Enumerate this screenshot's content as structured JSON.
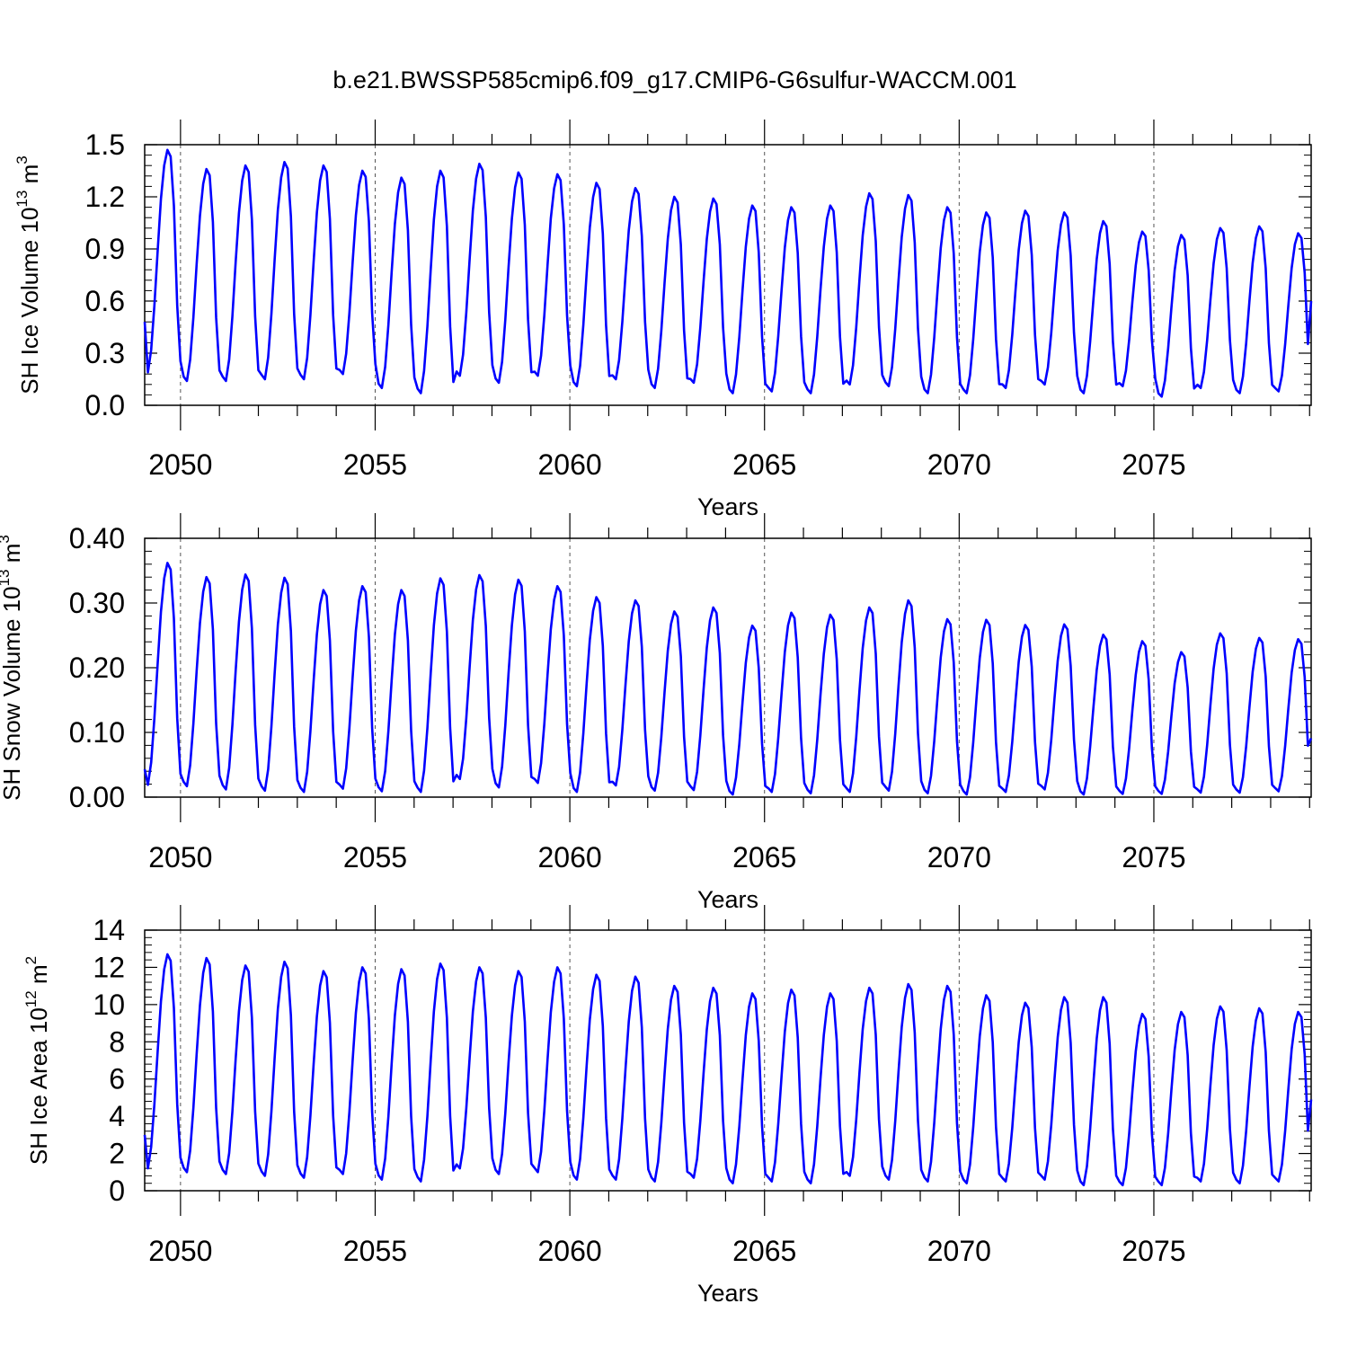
{
  "figure_title": "b.e21.BWSSP585cmip6.f09_g17.CMIP6-G6sulfur-WACCM.001",
  "line_color": "#0000ff",
  "chart_data": [
    {
      "type": "line",
      "ylabel_main": "SH Ice Volume 10",
      "ylabel_sup": "13",
      "ylabel_unit": " m",
      "ylabel_unit_sup": "3",
      "xlabel": "Years",
      "xlim": [
        2049.08,
        2079.04
      ],
      "ylim": [
        0,
        1.5
      ],
      "xticks": [
        "2050",
        "2055",
        "2060",
        "2065",
        "2070",
        "2075"
      ],
      "yticks": [
        "0.0",
        "0.3",
        "0.6",
        "0.9",
        "1.2",
        "1.5"
      ],
      "grid": "dashed vertical lines at labeled years",
      "series": [
        {
          "start_year": 2049.08,
          "peak_month_index": 8,
          "minima": [
            0.19,
            0.14,
            0.14,
            0.15,
            0.15,
            0.18,
            0.1,
            0.07,
            0.17,
            0.13,
            0.17,
            0.11,
            0.15,
            0.1,
            0.13,
            0.07,
            0.08,
            0.07,
            0.12,
            0.11,
            0.07,
            0.07,
            0.1,
            0.12,
            0.07,
            0.11,
            0.05,
            0.1,
            0.07,
            0.08
          ],
          "maxima": [
            1.47,
            1.36,
            1.38,
            1.4,
            1.38,
            1.35,
            1.31,
            1.35,
            1.39,
            1.34,
            1.33,
            1.28,
            1.25,
            1.2,
            1.19,
            1.15,
            1.14,
            1.15,
            1.22,
            1.21,
            1.14,
            1.11,
            1.12,
            1.11,
            1.06,
            1.0,
            0.98,
            1.02,
            1.03,
            0.99
          ],
          "start_value": 0.48,
          "end_value": 0.6
        }
      ]
    },
    {
      "type": "line",
      "ylabel_main": "SH Snow Volume 10",
      "ylabel_sup": "13",
      "ylabel_unit": " m",
      "ylabel_unit_sup": "3",
      "xlabel": "Years",
      "xlim": [
        2049.08,
        2079.04
      ],
      "ylim": [
        0,
        0.4
      ],
      "xticks": [
        "2050",
        "2055",
        "2060",
        "2065",
        "2070",
        "2075"
      ],
      "yticks": [
        "0.00",
        "0.10",
        "0.20",
        "0.30",
        "0.40"
      ],
      "grid": "dashed vertical lines at labeled years",
      "series": [
        {
          "start_year": 2049.08,
          "peak_month_index": 8,
          "minima": [
            0.019,
            0.017,
            0.012,
            0.01,
            0.008,
            0.013,
            0.009,
            0.008,
            0.028,
            0.015,
            0.022,
            0.008,
            0.018,
            0.01,
            0.011,
            0.004,
            0.008,
            0.006,
            0.008,
            0.01,
            0.006,
            0.004,
            0.008,
            0.012,
            0.004,
            0.005,
            0.005,
            0.007,
            0.007,
            0.009
          ],
          "maxima": [
            0.362,
            0.34,
            0.344,
            0.339,
            0.32,
            0.326,
            0.32,
            0.338,
            0.343,
            0.336,
            0.326,
            0.309,
            0.304,
            0.287,
            0.293,
            0.265,
            0.285,
            0.282,
            0.293,
            0.304,
            0.275,
            0.274,
            0.266,
            0.267,
            0.251,
            0.241,
            0.224,
            0.253,
            0.246,
            0.244
          ],
          "start_value": 0.043,
          "end_value": 0.091
        }
      ]
    },
    {
      "type": "line",
      "ylabel_main": "SH Ice Area 10",
      "ylabel_sup": "12",
      "ylabel_unit": " m",
      "ylabel_unit_sup": "2",
      "xlabel": "Years",
      "xlim": [
        2049.08,
        2079.04
      ],
      "ylim": [
        0,
        14
      ],
      "xticks": [
        "2050",
        "2055",
        "2060",
        "2065",
        "2070",
        "2075"
      ],
      "yticks": [
        "0",
        "2",
        "4",
        "6",
        "8",
        "10",
        "12",
        "14"
      ],
      "grid": "dashed vertical lines at labeled years",
      "series": [
        {
          "start_year": 2049.08,
          "peak_month_index": 8,
          "minima": [
            1.2,
            1.0,
            0.9,
            0.8,
            0.7,
            0.9,
            0.6,
            0.5,
            1.2,
            0.9,
            1.0,
            0.6,
            0.6,
            0.5,
            0.7,
            0.4,
            0.5,
            0.4,
            0.8,
            0.6,
            0.5,
            0.4,
            0.5,
            0.6,
            0.3,
            0.3,
            0.3,
            0.5,
            0.4,
            0.5
          ],
          "maxima": [
            12.7,
            12.5,
            12.1,
            12.3,
            11.8,
            12.0,
            11.9,
            12.2,
            12.0,
            11.8,
            12.0,
            11.6,
            11.5,
            11.0,
            10.9,
            10.6,
            10.8,
            10.6,
            10.9,
            11.1,
            11.0,
            10.5,
            10.1,
            10.4,
            10.4,
            9.5,
            9.6,
            9.9,
            9.8,
            9.6
          ],
          "start_value": 3.0,
          "end_value": 4.9
        }
      ]
    }
  ]
}
